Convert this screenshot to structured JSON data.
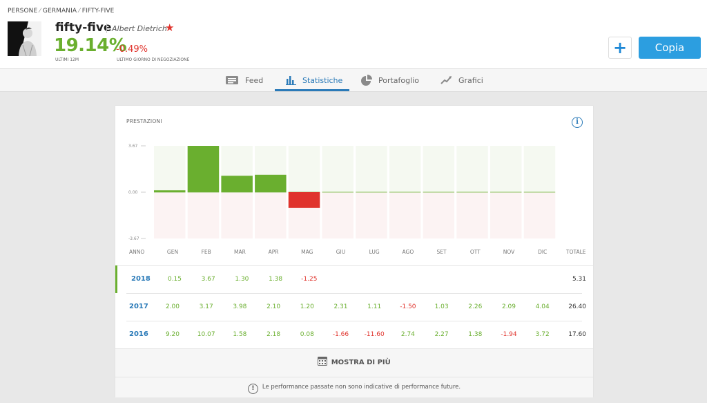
{
  "breadcrumb": [
    "PERSONE",
    "GERMANIA",
    "FIFTY-FIVE"
  ],
  "profile": {
    "username": "fifty-five",
    "fullname": "Albert Dietrich",
    "gain": "19.14%",
    "gain_label": "ULTIMI 12M",
    "daily": "-0.49%",
    "daily_label": "ULTIMO GIORNO DI NEGOZIAZIONE"
  },
  "actions": {
    "plus": "+",
    "copy": "Copia"
  },
  "tabs": [
    {
      "label": "Feed",
      "icon": "feed-icon"
    },
    {
      "label": "Statistiche",
      "icon": "bar-chart-icon",
      "active": true
    },
    {
      "label": "Portafoglio",
      "icon": "pie-chart-icon"
    },
    {
      "label": "Grafici",
      "icon": "line-chart-icon"
    }
  ],
  "card_title": "PRESTAZIONI",
  "columns": {
    "year": "ANNO",
    "months": [
      "GEN",
      "FEB",
      "MAR",
      "APR",
      "MAG",
      "GIU",
      "LUG",
      "AGO",
      "SET",
      "OTT",
      "NOV",
      "DIC"
    ],
    "total": "TOTALE"
  },
  "rows": [
    {
      "year": "2018",
      "values": [
        "0.15",
        "3.67",
        "1.30",
        "1.38",
        "-1.25",
        "",
        "",
        "",
        "",
        "",
        "",
        ""
      ],
      "total": "5.31"
    },
    {
      "year": "2017",
      "values": [
        "2.00",
        "3.17",
        "3.98",
        "2.10",
        "1.20",
        "2.31",
        "1.11",
        "-1.50",
        "1.03",
        "2.26",
        "2.09",
        "4.04"
      ],
      "total": "26.40"
    },
    {
      "year": "2016",
      "values": [
        "9.20",
        "10.07",
        "1.58",
        "2.18",
        "0.08",
        "-1.66",
        "-11.60",
        "2.74",
        "2.27",
        "1.38",
        "-1.94",
        "3.72"
      ],
      "total": "17.60"
    }
  ],
  "more_label": "MOSTRA DI PIÙ",
  "disclaimer": "Le performance passate non sono indicative di performance future.",
  "chart_data": {
    "type": "bar",
    "categories": [
      "GEN",
      "FEB",
      "MAR",
      "APR",
      "MAG",
      "GIU",
      "LUG",
      "AGO",
      "SET",
      "OTT",
      "NOV",
      "DIC"
    ],
    "values": [
      0.15,
      3.67,
      1.3,
      1.38,
      -1.25,
      0,
      0,
      0,
      0,
      0,
      0,
      0
    ],
    "ylim": [
      -3.67,
      3.67
    ],
    "yticks": [
      "3.67",
      "0.00",
      "-3.67"
    ],
    "colors": {
      "positive": "#6aaf2f",
      "negative": "#e0332c",
      "bg_pos": "#f5f9f1",
      "bg_neg": "#fcf3f3"
    }
  },
  "colors": {
    "accent": "#2a7ab8",
    "copy_button": "#2c9ee0",
    "gain": "#6aaf2f",
    "loss": "#e0332c"
  }
}
